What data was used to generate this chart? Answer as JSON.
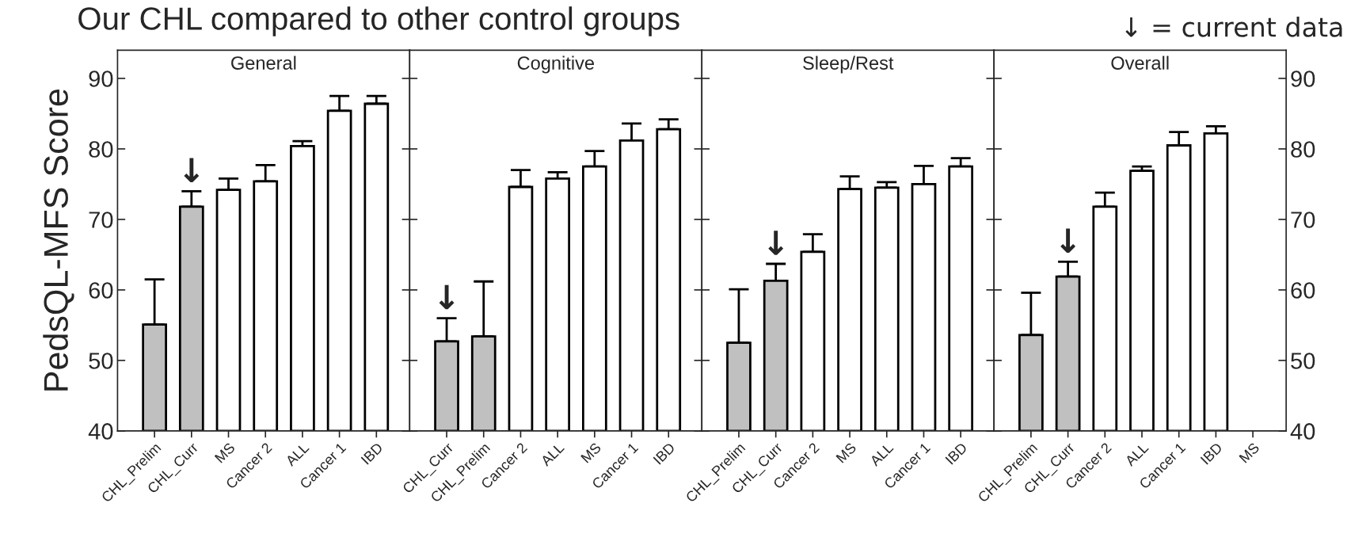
{
  "chart_data": [
    {
      "type": "bar",
      "title": "General",
      "ylabel": "PedsQL-MFS Score",
      "categories": [
        "CHL_Prelim",
        "CHL_Curr",
        "MS",
        "Cancer 2",
        "ALL",
        "Cancer 1",
        "IBD"
      ],
      "values": [
        55.1,
        71.8,
        74.2,
        75.4,
        80.4,
        85.4,
        86.4
      ],
      "errors": [
        [
          55.1,
          61.5
        ],
        [
          71.8,
          74.0
        ],
        [
          74.2,
          75.8
        ],
        [
          75.4,
          77.7
        ],
        [
          80.4,
          81.1
        ],
        [
          85.4,
          87.5
        ],
        [
          86.4,
          87.5
        ]
      ],
      "colors": [
        "#c0c0c0",
        "#c0c0c0",
        "#ffffff",
        "#ffffff",
        "#ffffff",
        "#ffffff",
        "#ffffff"
      ],
      "ylim": [
        40,
        94
      ],
      "yticks": [
        40,
        50,
        60,
        70,
        80,
        90
      ],
      "grid": false,
      "legend": false,
      "annotations": [
        "Our CHL compared to other control groups",
        {
          "text": "↓",
          "x": "CHL_Curr",
          "y": 74.0
        }
      ]
    },
    {
      "type": "bar",
      "title": "Cognitive",
      "categories": [
        "CHL_Curr",
        "CHL_Prelim",
        "Cancer 2",
        "ALL",
        "MS",
        "Cancer 1",
        "IBD"
      ],
      "values": [
        52.7,
        53.4,
        74.6,
        75.8,
        77.5,
        81.2,
        82.8
      ],
      "errors": [
        [
          52.7,
          56.0
        ],
        [
          53.4,
          61.2
        ],
        [
          74.6,
          77.0
        ],
        [
          75.8,
          76.7
        ],
        [
          77.5,
          79.7
        ],
        [
          81.2,
          83.6
        ],
        [
          82.8,
          84.2
        ]
      ],
      "colors": [
        "#c0c0c0",
        "#c0c0c0",
        "#ffffff",
        "#ffffff",
        "#ffffff",
        "#ffffff",
        "#ffffff"
      ],
      "ylim": [
        40,
        94
      ],
      "yticks": [
        40,
        50,
        60,
        70,
        80,
        90
      ],
      "tick_labels": "x",
      "grid": false,
      "legend": false,
      "annotations": [
        {
          "text": "↓",
          "x": "CHL_Curr",
          "y": 56.0
        }
      ]
    },
    {
      "type": "bar",
      "title": "Sleep/Rest",
      "categories": [
        "CHL_Prelim",
        "CHL_Curr",
        "Cancer 2",
        "MS",
        "ALL",
        "Cancer 1",
        "IBD"
      ],
      "values": [
        52.5,
        61.3,
        65.4,
        74.3,
        74.5,
        75.0,
        77.5
      ],
      "errors": [
        [
          52.5,
          60.1
        ],
        [
          61.3,
          63.7
        ],
        [
          65.4,
          67.9
        ],
        [
          74.3,
          76.1
        ],
        [
          74.5,
          75.3
        ],
        [
          75.0,
          77.6
        ],
        [
          77.5,
          78.7
        ]
      ],
      "colors": [
        "#c0c0c0",
        "#c0c0c0",
        "#ffffff",
        "#ffffff",
        "#ffffff",
        "#ffffff",
        "#ffffff"
      ],
      "ylim": [
        40,
        94
      ],
      "yticks": [
        40,
        50,
        60,
        70,
        80,
        90
      ],
      "tick_labels": "x",
      "grid": false,
      "legend": false,
      "annotations": [
        {
          "text": "↓",
          "x": "CHL_Curr",
          "y": 63.7
        }
      ]
    },
    {
      "type": "bar",
      "title": "Overall",
      "categories": [
        "CHL_Prelim",
        "CHL_Curr",
        "Cancer 2",
        "ALL",
        "Cancer 1",
        "IBD",
        "MS"
      ],
      "values": [
        53.6,
        61.9,
        71.8,
        76.9,
        80.5,
        82.2,
        null
      ],
      "errors": [
        [
          53.6,
          59.6
        ],
        [
          61.9,
          64.0
        ],
        [
          71.8,
          73.8
        ],
        [
          76.9,
          77.5
        ],
        [
          80.5,
          82.4
        ],
        [
          82.2,
          83.2
        ],
        null
      ],
      "colors": [
        "#c0c0c0",
        "#c0c0c0",
        "#ffffff",
        "#ffffff",
        "#ffffff",
        "#ffffff",
        "#ffffff"
      ],
      "ylim": [
        40,
        94
      ],
      "yticks": [
        40,
        50,
        60,
        70,
        80,
        90
      ],
      "grid": false,
      "legend": false,
      "annotations": [
        {
          "text": "↓",
          "x": "CHL_Curr",
          "y": 64.0
        },
        "↓ = current data"
      ]
    }
  ]
}
